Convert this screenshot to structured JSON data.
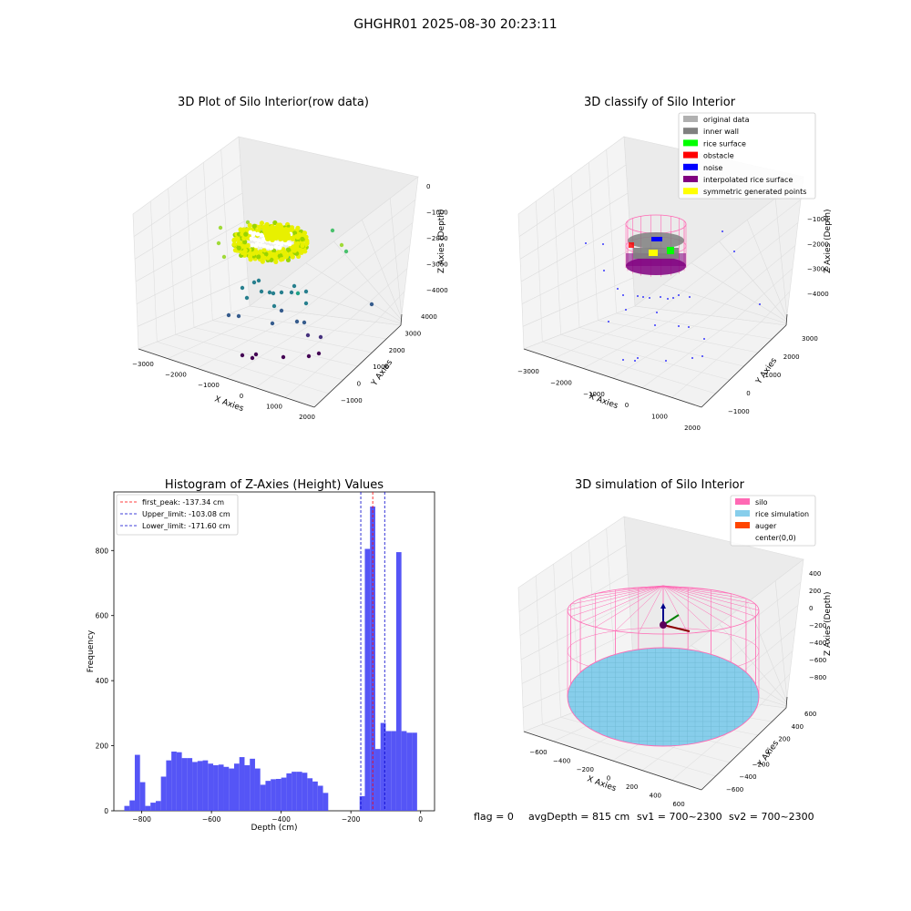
{
  "figure_title": "GHGHR01 2025-08-30 20:23:11",
  "status_line": {
    "flag": "flag = 0",
    "avg_depth": "avgDepth = 815 cm",
    "sv1": "sv1 = 700~2300",
    "sv2": "sv2 = 700~2300"
  },
  "colors": {
    "hist_bar": "#4c4cf5",
    "first_peak_line": "#ff0000",
    "limit_line": "#0000cc",
    "pane_fill": "#f2f2f2",
    "ring_yellow": "#e8f000",
    "ring_green": "#9ad400",
    "silo_pink": "#ff69b4",
    "rice_blue": "#87ceeb",
    "auger_orange": "#ff4500",
    "interp_purple": "#800080",
    "noise_blue": "#0000ff",
    "inner_wall_gray": "#808080",
    "original_gray": "#b0b0b0",
    "rice_surface_green": "#00ff00",
    "obstacle_red": "#ff0000",
    "symmetric_yellow": "#ffff00"
  },
  "chart_data": [
    {
      "type": "scatter",
      "dimension": "3d",
      "title": "3D Plot of Silo Interior(row data)",
      "xlabel": "X Axies",
      "ylabel": "Y Axies",
      "zlabel": "Z Axies (Depth)",
      "x_ticks": [
        "−3000",
        "−2000",
        "−1000",
        "0",
        "1000",
        "2000"
      ],
      "y_ticks": [
        "−1000",
        "0",
        "1000",
        "2000",
        "3000",
        "4000"
      ],
      "z_ticks": [
        "0",
        "−1000",
        "−2000",
        "−3000",
        "−4000"
      ],
      "xlim": [
        -3000,
        2000
      ],
      "ylim": [
        -1000,
        4000
      ],
      "zlim": [
        -4500,
        0
      ],
      "colormap": "viridis (color by depth)",
      "grid": true
    },
    {
      "type": "scatter",
      "dimension": "3d",
      "title": "3D classify of Silo Interior",
      "xlabel": "X Axies",
      "ylabel": "Y Axies",
      "zlabel": "Z Axies (Depth)",
      "x_ticks": [
        "−3000",
        "−2000",
        "−1000",
        "0",
        "1000",
        "2000"
      ],
      "y_ticks": [
        "−1000",
        "0",
        "1000",
        "2000",
        "3000"
      ],
      "z_ticks": [
        "−1000",
        "−2000",
        "−3000",
        "−4000"
      ],
      "xlim": [
        -3000,
        2000
      ],
      "ylim": [
        -1000,
        3000
      ],
      "zlim": [
        -4500,
        0
      ],
      "legend_position": "top-right",
      "legend": [
        {
          "label": "original data",
          "color": "#b0b0b0"
        },
        {
          "label": "inner wall",
          "color": "#808080"
        },
        {
          "label": "rice surface",
          "color": "#00ff00"
        },
        {
          "label": "obstacle",
          "color": "#ff0000"
        },
        {
          "label": "noise",
          "color": "#0000ff"
        },
        {
          "label": "interpolated rice surface",
          "color": "#800080"
        },
        {
          "label": "symmetric generated points",
          "color": "#ffff00"
        }
      ],
      "grid": true
    },
    {
      "type": "bar",
      "title": "Histogram of Z-Axies (Height) Values",
      "xlabel": "Depth (cm)",
      "ylabel": "Frequency",
      "xlim": [
        -880,
        40
      ],
      "ylim": [
        0,
        980
      ],
      "x_ticks": [
        -800,
        -600,
        -400,
        -200,
        0
      ],
      "x_tick_labels": [
        "−800",
        "−600",
        "−400",
        "−200",
        "0"
      ],
      "y_ticks": [
        0,
        200,
        400,
        600,
        800
      ],
      "bin_width": 15,
      "bins_start": [
        -850,
        -835,
        -820,
        -805,
        -790,
        -775,
        -760,
        -745,
        -730,
        -715,
        -700,
        -685,
        -670,
        -655,
        -640,
        -625,
        -610,
        -595,
        -580,
        -565,
        -550,
        -535,
        -520,
        -505,
        -490,
        -475,
        -460,
        -445,
        -430,
        -415,
        -400,
        -385,
        -370,
        -355,
        -340,
        -325,
        -310,
        -295,
        -280,
        -265,
        -250,
        -235,
        -220,
        -205,
        -190,
        -175,
        -160,
        -145,
        -130,
        -115,
        -100,
        -85,
        -70,
        -55,
        -40,
        -25,
        -10
      ],
      "values": [
        15,
        32,
        172,
        88,
        15,
        25,
        30,
        105,
        155,
        182,
        180,
        162,
        162,
        150,
        153,
        155,
        145,
        140,
        142,
        135,
        130,
        145,
        165,
        140,
        160,
        130,
        80,
        92,
        97,
        98,
        102,
        115,
        120,
        120,
        117,
        100,
        90,
        77,
        55,
        0,
        0,
        0,
        0,
        0,
        0,
        45,
        805,
        935,
        190,
        270,
        245,
        245,
        795,
        245,
        240,
        240,
        0
      ],
      "vlines": [
        {
          "label": "first_peak: -137.34 cm",
          "x": -137.34,
          "color": "#ff0000"
        },
        {
          "label": "Upper_limit: -103.08 cm",
          "x": -103.08,
          "color": "#0000cc"
        },
        {
          "label": "Lower_limit: -171.60 cm",
          "x": -171.6,
          "color": "#0000cc"
        }
      ],
      "legend_position": "top-left",
      "grid": false
    },
    {
      "type": "scatter",
      "dimension": "3d",
      "title": "3D simulation of Silo Interior",
      "xlabel": "X Axies",
      "ylabel": "Y Axies",
      "zlabel": "Z Axies (Depth)",
      "x_ticks": [
        "−600",
        "−400",
        "−200",
        "0",
        "200",
        "400",
        "600"
      ],
      "y_ticks": [
        "−600",
        "−400",
        "−200",
        "0",
        "200",
        "400",
        "600"
      ],
      "z_ticks": [
        "400",
        "200",
        "0",
        "−200",
        "−400",
        "−600",
        "−800"
      ],
      "xlim": [
        -700,
        700
      ],
      "ylim": [
        -700,
        700
      ],
      "zlim": [
        -900,
        450
      ],
      "legend_position": "top-right",
      "legend": [
        {
          "label": "silo",
          "color": "#ff69b4"
        },
        {
          "label": "rice simulation",
          "color": "#87ceeb"
        },
        {
          "label": "auger",
          "color": "#ff4500"
        },
        {
          "label": "center(0,0)",
          "color": ""
        }
      ],
      "grid": true
    }
  ]
}
